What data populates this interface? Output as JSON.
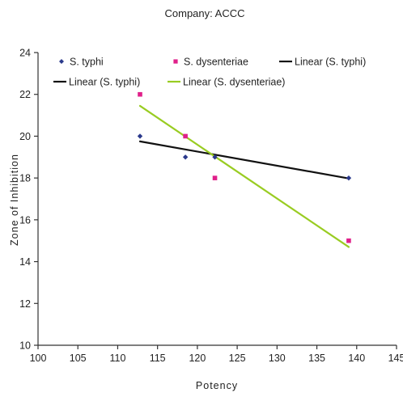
{
  "colors": {
    "typhi_marker": "#2b3a8c",
    "dysenteriae_marker": "#e0208a",
    "typhi_line": "#111111",
    "dysenteriae_line": "#99cc22",
    "axis": "#333333"
  },
  "chart_data": {
    "type": "scatter",
    "title": "Company: ACCC",
    "xlabel": "Potency",
    "ylabel": "Zone of Inhibition",
    "xlim": [
      100,
      145
    ],
    "ylim": [
      10,
      24
    ],
    "xticks": [
      "100",
      "105",
      "110",
      "115",
      "120",
      "125",
      "130",
      "135",
      "140",
      "145"
    ],
    "yticks": [
      "10",
      "12",
      "14",
      "16",
      "18",
      "20",
      "22",
      "24"
    ],
    "grid": false,
    "legend_position": "top",
    "legend": [
      {
        "label": "S. typhi",
        "kind": "marker-diamond",
        "color": "#2b3a8c"
      },
      {
        "label": "S. dysenteriae",
        "kind": "marker-square",
        "color": "#e0208a"
      },
      {
        "label": "Linear (S. typhi)",
        "kind": "line",
        "color": "#111111"
      },
      {
        "label": "Linear (S. typhi)",
        "kind": "line",
        "color": "#111111"
      },
      {
        "label": "Linear (S. dysenteriae)",
        "kind": "line",
        "color": "#99cc22"
      }
    ],
    "series": [
      {
        "name": "S. typhi",
        "marker": "diamond",
        "color": "#2b3a8c",
        "points": [
          [
            112.8,
            20.0
          ],
          [
            118.5,
            19.0
          ],
          [
            122.2,
            19.0
          ],
          [
            139.0,
            18.0
          ]
        ]
      },
      {
        "name": "S. dysenteriae",
        "marker": "square",
        "color": "#e0208a",
        "points": [
          [
            112.8,
            22.0
          ],
          [
            118.5,
            20.0
          ],
          [
            122.2,
            18.0
          ],
          [
            139.0,
            15.0
          ]
        ]
      }
    ],
    "trendlines": [
      {
        "name": "Linear (S. typhi)",
        "color": "#111111",
        "from": [
          112.8,
          19.75
        ],
        "to": [
          139.0,
          17.98
        ]
      },
      {
        "name": "Linear (S. dysenteriae)",
        "color": "#99cc22",
        "from": [
          112.8,
          21.45
        ],
        "to": [
          139.0,
          14.7
        ]
      }
    ]
  }
}
